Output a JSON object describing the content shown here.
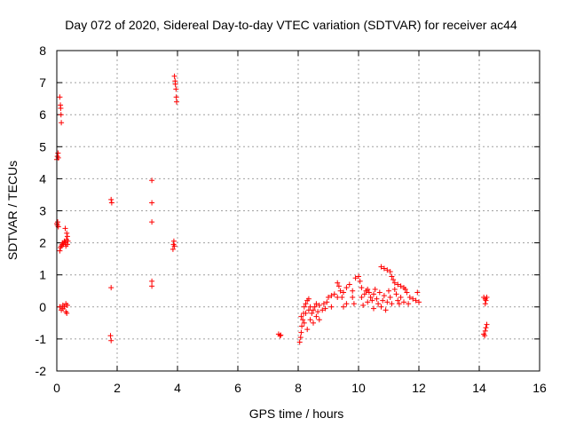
{
  "chart_data": {
    "type": "scatter",
    "title": "Day 072 of 2020, Sidereal Day-to-day VTEC variation (SDTVAR) for receiver ac44",
    "xlabel": "GPS time / hours",
    "ylabel": "SDTVAR / TECUs",
    "xlim": [
      0,
      16
    ],
    "ylim": [
      -2,
      8
    ],
    "x_ticks": [
      "0",
      "2",
      "4",
      "6",
      "8",
      "10",
      "12",
      "14",
      "16"
    ],
    "y_ticks": [
      "-2",
      "-1",
      "0",
      "1",
      "2",
      "3",
      "4",
      "5",
      "6",
      "7",
      "8"
    ],
    "grid": true,
    "marker": "+",
    "series": [
      {
        "color": "#ff0000",
        "points": [
          [
            0.0,
            2.6
          ],
          [
            0.02,
            2.55
          ],
          [
            0.05,
            2.5
          ],
          [
            0.03,
            2.65
          ],
          [
            0.0,
            4.6
          ],
          [
            0.02,
            4.7
          ],
          [
            0.04,
            4.8
          ],
          [
            0.05,
            4.65
          ],
          [
            0.1,
            6.55
          ],
          [
            0.12,
            6.3
          ],
          [
            0.13,
            6.2
          ],
          [
            0.14,
            6.0
          ],
          [
            0.15,
            5.75
          ],
          [
            0.1,
            1.75
          ],
          [
            0.12,
            1.85
          ],
          [
            0.15,
            1.9
          ],
          [
            0.18,
            1.95
          ],
          [
            0.2,
            2.0
          ],
          [
            0.22,
            1.95
          ],
          [
            0.25,
            2.05
          ],
          [
            0.28,
            2.0
          ],
          [
            0.3,
            1.9
          ],
          [
            0.32,
            2.1
          ],
          [
            0.35,
            2.2
          ],
          [
            0.33,
            2.3
          ],
          [
            0.28,
            2.45
          ],
          [
            0.35,
            1.95
          ],
          [
            0.37,
            2.05
          ],
          [
            0.1,
            0.0
          ],
          [
            0.15,
            -0.1
          ],
          [
            0.2,
            -0.05
          ],
          [
            0.25,
            0.0
          ],
          [
            0.3,
            -0.15
          ],
          [
            0.33,
            -0.2
          ],
          [
            0.35,
            0.05
          ],
          [
            0.3,
            0.1
          ],
          [
            0.2,
            0.05
          ],
          [
            1.8,
            3.35
          ],
          [
            1.82,
            3.25
          ],
          [
            1.8,
            0.6
          ],
          [
            1.78,
            -0.9
          ],
          [
            1.8,
            -1.05
          ],
          [
            3.15,
            3.95
          ],
          [
            3.15,
            3.25
          ],
          [
            3.15,
            2.65
          ],
          [
            3.15,
            0.8
          ],
          [
            3.15,
            0.65
          ],
          [
            3.85,
            1.8
          ],
          [
            3.87,
            1.95
          ],
          [
            3.88,
            2.05
          ],
          [
            3.9,
            1.9
          ],
          [
            3.9,
            7.2
          ],
          [
            3.92,
            7.05
          ],
          [
            3.93,
            6.95
          ],
          [
            3.95,
            6.8
          ],
          [
            3.96,
            6.55
          ],
          [
            3.97,
            6.4
          ],
          [
            7.35,
            -0.85
          ],
          [
            7.4,
            -0.9
          ],
          [
            7.42,
            -0.88
          ],
          [
            8.05,
            -1.1
          ],
          [
            8.08,
            -0.95
          ],
          [
            8.1,
            -0.8
          ],
          [
            8.12,
            -0.6
          ],
          [
            8.15,
            -0.4
          ],
          [
            8.18,
            -0.2
          ],
          [
            8.2,
            0.0
          ],
          [
            8.25,
            0.1
          ],
          [
            8.3,
            0.2
          ],
          [
            8.35,
            0.25
          ],
          [
            8.1,
            -0.3
          ],
          [
            8.2,
            -0.5
          ],
          [
            8.3,
            -0.7
          ],
          [
            8.25,
            -0.2
          ],
          [
            8.35,
            -0.1
          ],
          [
            8.4,
            -0.4
          ],
          [
            8.45,
            -0.2
          ],
          [
            8.5,
            -0.1
          ],
          [
            8.55,
            0.0
          ],
          [
            8.6,
            0.1
          ],
          [
            8.5,
            -0.5
          ],
          [
            8.4,
            0.0
          ],
          [
            8.6,
            -0.3
          ],
          [
            8.65,
            -0.15
          ],
          [
            8.7,
            0.05
          ],
          [
            8.7,
            -0.4
          ],
          [
            8.8,
            -0.1
          ],
          [
            8.85,
            0.1
          ],
          [
            8.9,
            -0.05
          ],
          [
            8.95,
            0.15
          ],
          [
            9.0,
            0.3
          ],
          [
            9.1,
            0.35
          ],
          [
            9.2,
            0.4
          ],
          [
            9.3,
            0.3
          ],
          [
            9.1,
            0.0
          ],
          [
            9.3,
            0.75
          ],
          [
            9.35,
            0.65
          ],
          [
            9.4,
            0.5
          ],
          [
            9.5,
            0.45
          ],
          [
            9.45,
            0.3
          ],
          [
            9.5,
            0.0
          ],
          [
            9.6,
            0.1
          ],
          [
            9.6,
            0.6
          ],
          [
            9.7,
            0.7
          ],
          [
            9.8,
            0.5
          ],
          [
            9.8,
            0.3
          ],
          [
            9.85,
            0.1
          ],
          [
            9.9,
            0.9
          ],
          [
            10.0,
            0.95
          ],
          [
            10.05,
            0.8
          ],
          [
            10.1,
            0.6
          ],
          [
            10.1,
            0.3
          ],
          [
            10.15,
            0.05
          ],
          [
            10.2,
            0.4
          ],
          [
            10.25,
            0.5
          ],
          [
            10.3,
            0.55
          ],
          [
            10.35,
            0.45
          ],
          [
            10.3,
            0.15
          ],
          [
            10.4,
            0.3
          ],
          [
            10.45,
            0.2
          ],
          [
            10.5,
            0.4
          ],
          [
            10.5,
            -0.05
          ],
          [
            10.55,
            0.55
          ],
          [
            10.6,
            0.25
          ],
          [
            10.65,
            0.1
          ],
          [
            10.7,
            0.45
          ],
          [
            10.75,
            0.0
          ],
          [
            10.8,
            0.2
          ],
          [
            10.85,
            0.35
          ],
          [
            10.9,
            -0.1
          ],
          [
            10.95,
            0.15
          ],
          [
            11.0,
            0.5
          ],
          [
            11.05,
            0.3
          ],
          [
            11.1,
            0.1
          ],
          [
            11.2,
            0.55
          ],
          [
            11.25,
            0.4
          ],
          [
            11.3,
            0.2
          ],
          [
            11.35,
            0.1
          ],
          [
            11.4,
            0.3
          ],
          [
            11.5,
            0.15
          ],
          [
            11.6,
            0.45
          ],
          [
            11.65,
            0.1
          ],
          [
            11.7,
            0.3
          ],
          [
            11.8,
            0.25
          ],
          [
            11.9,
            0.2
          ],
          [
            11.95,
            0.45
          ],
          [
            12.0,
            0.15
          ],
          [
            10.75,
            1.25
          ],
          [
            10.85,
            1.2
          ],
          [
            10.95,
            1.15
          ],
          [
            11.05,
            1.1
          ],
          [
            11.1,
            0.95
          ],
          [
            11.15,
            0.85
          ],
          [
            11.2,
            0.75
          ],
          [
            11.3,
            0.7
          ],
          [
            11.4,
            0.65
          ],
          [
            11.5,
            0.6
          ],
          [
            11.55,
            0.55
          ],
          [
            14.15,
            0.3
          ],
          [
            14.2,
            0.25
          ],
          [
            14.22,
            0.2
          ],
          [
            14.25,
            0.3
          ],
          [
            14.2,
            0.1
          ],
          [
            14.15,
            -0.85
          ],
          [
            14.2,
            -0.75
          ],
          [
            14.22,
            -0.65
          ],
          [
            14.25,
            -0.55
          ],
          [
            14.18,
            -0.9
          ]
        ]
      }
    ]
  }
}
